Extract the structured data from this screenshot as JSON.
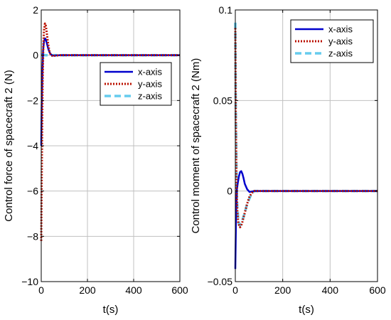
{
  "chart_data": [
    {
      "type": "line",
      "xlabel": "t(s)",
      "ylabel": "Control force of spacecraft 2 (N)",
      "xlim": [
        0,
        600
      ],
      "ylim": [
        -10,
        2
      ],
      "xticks": [
        0,
        200,
        400,
        600
      ],
      "yticks": [
        -10,
        -8,
        -6,
        -4,
        -2,
        0,
        2
      ],
      "xtick_labels": [
        "0",
        "200",
        "400",
        "600"
      ],
      "ytick_labels": [
        "−10",
        "−8",
        "−6",
        "−4",
        "−2",
        "0",
        "2"
      ],
      "grid": true,
      "legend_position": "center-right",
      "series": [
        {
          "name": "x-axis",
          "color": "#0000cc",
          "style": "solid",
          "x": [
            0,
            2,
            5,
            8,
            12,
            16,
            20,
            25,
            30,
            35,
            40,
            50,
            60,
            80,
            100,
            600
          ],
          "y": [
            -4,
            -2.2,
            -0.8,
            0.2,
            0.6,
            0.75,
            0.7,
            0.5,
            0.3,
            0.15,
            0.05,
            -0.02,
            -0.01,
            0,
            0,
            0
          ]
        },
        {
          "name": "y-axis",
          "color": "#bb1100",
          "style": "dotted",
          "x": [
            0,
            3,
            6,
            9,
            12,
            16,
            20,
            25,
            30,
            35,
            40,
            50,
            60,
            80,
            100,
            600
          ],
          "y": [
            -8.2,
            -4.5,
            -1.2,
            0.4,
            1.1,
            1.4,
            1.3,
            0.9,
            0.5,
            0.2,
            0.05,
            -0.05,
            -0.02,
            0,
            0,
            0
          ]
        },
        {
          "name": "z-axis",
          "color": "#66ccee",
          "style": "dashed",
          "x": [
            0,
            5,
            10,
            20,
            40,
            600
          ],
          "y": [
            0.02,
            0.02,
            0.01,
            0,
            0,
            0
          ]
        }
      ]
    },
    {
      "type": "line",
      "xlabel": "t(s)",
      "ylabel": "Control moment of spacecraft 2 (Nm)",
      "xlim": [
        0,
        600
      ],
      "ylim": [
        -0.05,
        0.1
      ],
      "xticks": [
        0,
        200,
        400,
        600
      ],
      "yticks": [
        -0.05,
        0,
        0.05,
        0.1
      ],
      "xtick_labels": [
        "0",
        "200",
        "400",
        "600"
      ],
      "ytick_labels": [
        "−0.05",
        "0",
        "0.05",
        "0.1"
      ],
      "grid": true,
      "legend_position": "top-right",
      "series": [
        {
          "name": "x-axis",
          "color": "#0000cc",
          "style": "solid",
          "x": [
            0,
            3,
            6,
            10,
            15,
            20,
            25,
            30,
            35,
            40,
            50,
            60,
            80,
            100,
            600
          ],
          "y": [
            -0.043,
            -0.015,
            0,
            0.004,
            0.008,
            0.0105,
            0.011,
            0.0095,
            0.007,
            0.004,
            0.001,
            -0.0005,
            0,
            0,
            0
          ]
        },
        {
          "name": "y-axis",
          "color": "#bb1100",
          "style": "dotted",
          "x": [
            0,
            2,
            5,
            8,
            12,
            16,
            20,
            25,
            30,
            40,
            50,
            60,
            70,
            80,
            100,
            600
          ],
          "y": [
            0.09,
            0.04,
            0.005,
            -0.01,
            -0.017,
            -0.019,
            -0.02,
            -0.019,
            -0.017,
            -0.012,
            -0.007,
            -0.003,
            -0.001,
            0,
            0,
            0
          ]
        },
        {
          "name": "z-axis",
          "color": "#66ccee",
          "style": "dashed",
          "x": [
            0,
            2,
            5,
            8,
            12,
            16,
            20,
            25,
            30,
            40,
            50,
            60,
            70,
            80,
            100,
            600
          ],
          "y": [
            0.093,
            0.045,
            0.008,
            -0.008,
            -0.015,
            -0.018,
            -0.019,
            -0.018,
            -0.016,
            -0.012,
            -0.007,
            -0.004,
            -0.001,
            0,
            0,
            0
          ]
        }
      ]
    }
  ]
}
